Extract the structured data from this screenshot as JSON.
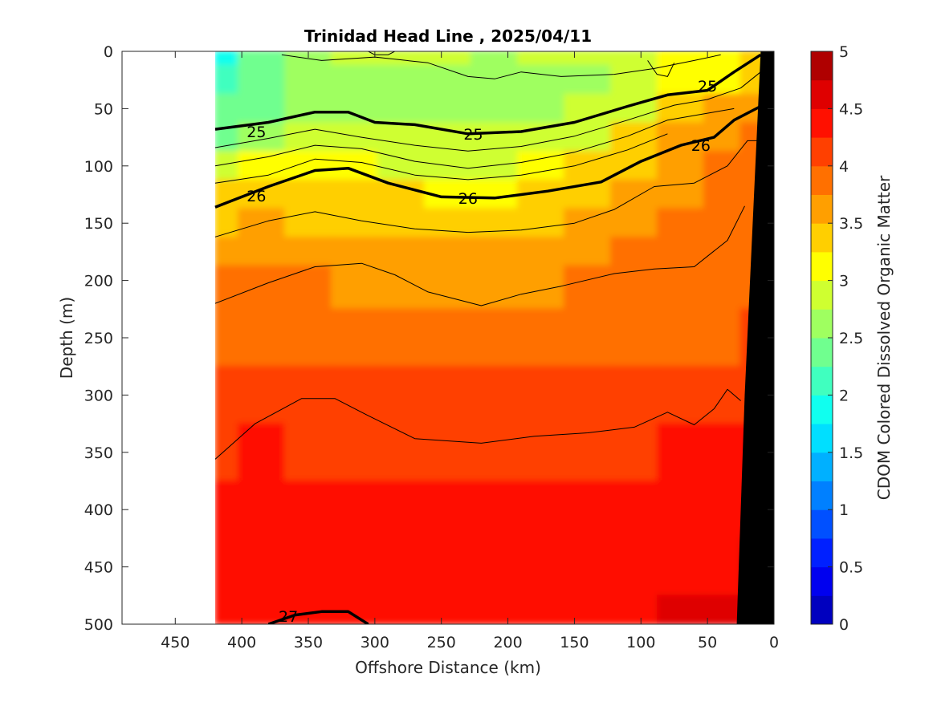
{
  "chart_data": {
    "type": "heatmap",
    "title": "Trinidad Head Line , 2025/04/11",
    "xlabel": "Offshore Distance (km)",
    "ylabel": "Depth (m)",
    "colorbar_label": "CDOM Colored Dissolved Organic Matter",
    "xlim": [
      490,
      0
    ],
    "ylim": [
      500,
      0
    ],
    "x_reversed": true,
    "y_reversed": true,
    "x_ticks": [
      450,
      400,
      350,
      300,
      250,
      200,
      150,
      100,
      50,
      0
    ],
    "y_ticks": [
      0,
      50,
      100,
      150,
      200,
      250,
      300,
      350,
      400,
      450,
      500
    ],
    "colorbar_range": [
      0,
      5
    ],
    "colorbar_ticks": [
      0,
      0.5,
      1,
      1.5,
      2,
      2.5,
      3,
      3.5,
      4,
      4.5,
      5
    ],
    "colorbar_levels": 20,
    "colormap": [
      "#00008f",
      "#0000bf",
      "#0000ef",
      "#0020ff",
      "#0050ff",
      "#0080ff",
      "#00b0ff",
      "#00dfff",
      "#10ffef",
      "#40ffbf",
      "#70ff8f",
      "#9fff60",
      "#cfff30",
      "#ffff00",
      "#ffcf00",
      "#ff9f00",
      "#ff7000",
      "#ff4000",
      "#ff1000",
      "#df0000",
      "#af0000"
    ],
    "data_x_range": [
      420,
      0
    ],
    "grid": false,
    "legend": "none",
    "bathymetry_color": "#000000",
    "bathymetry": [
      [
        10,
        0
      ],
      [
        22,
        300
      ],
      [
        28,
        500
      ]
    ],
    "x_columns": [
      420,
      385,
      350,
      315,
      280,
      245,
      210,
      175,
      140,
      105,
      70,
      35,
      15
    ],
    "depth_rows": [
      0,
      25,
      50,
      75,
      100,
      125,
      150,
      175,
      200,
      250,
      300,
      350,
      400,
      450,
      500
    ],
    "cdom_field": [
      [
        2.1,
        2.6,
        2.8,
        2.9,
        2.9,
        2.9,
        2.8,
        2.9,
        3.0,
        3.1,
        3.2,
        3.3,
        3.4
      ],
      [
        2.3,
        2.6,
        2.8,
        2.8,
        2.8,
        2.8,
        2.8,
        2.8,
        2.8,
        3.0,
        3.2,
        3.3,
        3.6
      ],
      [
        2.4,
        2.6,
        2.7,
        2.7,
        2.7,
        2.8,
        2.8,
        2.8,
        2.9,
        3.1,
        3.4,
        3.7,
        3.8
      ],
      [
        2.6,
        2.8,
        2.9,
        2.9,
        2.9,
        2.9,
        2.9,
        3.0,
        3.1,
        3.4,
        3.7,
        3.8,
        3.9
      ],
      [
        3.1,
        3.2,
        3.3,
        3.2,
        3.1,
        3.1,
        3.1,
        3.2,
        3.4,
        3.6,
        3.8,
        3.9,
        3.9
      ],
      [
        3.4,
        3.5,
        3.5,
        3.5,
        3.4,
        3.3,
        3.3,
        3.4,
        3.6,
        3.7,
        3.8,
        3.9,
        4.0
      ],
      [
        3.6,
        3.7,
        3.6,
        3.6,
        3.6,
        3.6,
        3.6,
        3.6,
        3.7,
        3.8,
        3.9,
        4.0,
        4.0
      ],
      [
        3.8,
        3.8,
        3.8,
        3.7,
        3.7,
        3.7,
        3.7,
        3.7,
        3.8,
        3.9,
        4.0,
        4.0,
        4.1
      ],
      [
        4.0,
        4.0,
        3.9,
        3.8,
        3.8,
        3.8,
        3.8,
        3.8,
        3.9,
        3.9,
        4.0,
        4.1,
        4.1
      ],
      [
        4.1,
        4.1,
        4.1,
        4.1,
        4.1,
        4.1,
        4.1,
        4.1,
        4.1,
        4.0,
        4.1,
        4.1,
        4.2
      ],
      [
        4.2,
        4.2,
        4.2,
        4.2,
        4.2,
        4.2,
        4.2,
        4.2,
        4.2,
        4.2,
        4.2,
        4.3,
        4.3
      ],
      [
        4.3,
        4.4,
        4.3,
        4.3,
        4.3,
        4.3,
        4.3,
        4.3,
        4.3,
        4.3,
        4.4,
        4.4,
        4.5
      ],
      [
        4.4,
        4.5,
        4.4,
        4.4,
        4.4,
        4.4,
        4.4,
        4.4,
        4.4,
        4.4,
        4.5,
        4.5,
        4.6
      ],
      [
        4.5,
        4.6,
        4.5,
        4.5,
        4.5,
        4.5,
        4.5,
        4.5,
        4.5,
        4.5,
        4.6,
        4.6,
        4.7
      ],
      [
        4.6,
        4.6,
        4.6,
        4.5,
        4.5,
        4.6,
        4.6,
        4.6,
        4.6,
        4.6,
        4.7,
        4.7,
        4.7
      ]
    ],
    "density_contours": [
      {
        "label": "25",
        "bold": true,
        "points": [
          [
            420,
            68
          ],
          [
            380,
            62
          ],
          [
            345,
            53
          ],
          [
            320,
            53
          ],
          [
            300,
            62
          ],
          [
            270,
            64
          ],
          [
            230,
            72
          ],
          [
            190,
            70
          ],
          [
            150,
            62
          ],
          [
            110,
            48
          ],
          [
            80,
            38
          ],
          [
            50,
            34
          ],
          [
            30,
            18
          ],
          [
            10,
            3
          ]
        ]
      },
      {
        "label": "26",
        "bold": true,
        "points": [
          [
            420,
            136
          ],
          [
            380,
            118
          ],
          [
            345,
            104
          ],
          [
            320,
            102
          ],
          [
            290,
            115
          ],
          [
            250,
            127
          ],
          [
            210,
            128
          ],
          [
            170,
            122
          ],
          [
            130,
            114
          ],
          [
            100,
            96
          ],
          [
            70,
            82
          ],
          [
            45,
            75
          ],
          [
            30,
            60
          ],
          [
            10,
            48
          ]
        ]
      },
      {
        "label": "27",
        "bold": true,
        "points": [
          [
            380,
            500
          ],
          [
            360,
            492
          ],
          [
            340,
            489
          ],
          [
            320,
            489
          ],
          [
            305,
            500
          ]
        ]
      },
      {
        "label": "",
        "bold": false,
        "points": [
          [
            420,
            84
          ],
          [
            380,
            76
          ],
          [
            345,
            68
          ],
          [
            310,
            75
          ],
          [
            270,
            82
          ],
          [
            230,
            87
          ],
          [
            190,
            83
          ],
          [
            150,
            74
          ],
          [
            110,
            60
          ],
          [
            75,
            47
          ],
          [
            50,
            42
          ],
          [
            25,
            32
          ],
          [
            10,
            18
          ]
        ]
      },
      {
        "label": "",
        "bold": false,
        "points": [
          [
            420,
            100
          ],
          [
            380,
            92
          ],
          [
            345,
            82
          ],
          [
            310,
            85
          ],
          [
            270,
            96
          ],
          [
            230,
            102
          ],
          [
            190,
            97
          ],
          [
            150,
            88
          ],
          [
            110,
            74
          ],
          [
            80,
            60
          ],
          [
            50,
            54
          ],
          [
            30,
            50
          ]
        ]
      },
      {
        "label": "",
        "bold": false,
        "points": [
          [
            420,
            115
          ],
          [
            380,
            108
          ],
          [
            345,
            94
          ],
          [
            310,
            97
          ],
          [
            270,
            108
          ],
          [
            230,
            112
          ],
          [
            190,
            108
          ],
          [
            150,
            100
          ],
          [
            110,
            86
          ],
          [
            80,
            72
          ]
        ]
      },
      {
        "label": "",
        "bold": false,
        "points": [
          [
            420,
            162
          ],
          [
            380,
            148
          ],
          [
            345,
            140
          ],
          [
            310,
            148
          ],
          [
            270,
            155
          ],
          [
            230,
            158
          ],
          [
            190,
            156
          ],
          [
            150,
            150
          ],
          [
            120,
            138
          ],
          [
            90,
            118
          ],
          [
            60,
            115
          ],
          [
            35,
            100
          ],
          [
            20,
            78
          ],
          [
            10,
            78
          ]
        ]
      },
      {
        "label": "",
        "bold": false,
        "points": [
          [
            420,
            220
          ],
          [
            380,
            202
          ],
          [
            345,
            188
          ],
          [
            310,
            185
          ],
          [
            285,
            195
          ],
          [
            260,
            210
          ],
          [
            220,
            222
          ],
          [
            190,
            212
          ],
          [
            160,
            205
          ],
          [
            120,
            194
          ],
          [
            90,
            190
          ],
          [
            60,
            188
          ],
          [
            35,
            165
          ],
          [
            22,
            135
          ]
        ]
      },
      {
        "label": "",
        "bold": false,
        "points": [
          [
            420,
            356
          ],
          [
            390,
            325
          ],
          [
            355,
            303
          ],
          [
            330,
            303
          ],
          [
            305,
            318
          ],
          [
            270,
            338
          ],
          [
            220,
            342
          ],
          [
            180,
            336
          ],
          [
            140,
            333
          ],
          [
            105,
            328
          ],
          [
            80,
            315
          ],
          [
            60,
            326
          ],
          [
            45,
            312
          ],
          [
            35,
            295
          ],
          [
            25,
            305
          ]
        ]
      },
      {
        "label": "",
        "bold": false,
        "points": [
          [
            370,
            3
          ],
          [
            340,
            8
          ],
          [
            300,
            5
          ],
          [
            260,
            10
          ],
          [
            230,
            22
          ],
          [
            210,
            24
          ],
          [
            190,
            18
          ],
          [
            160,
            22
          ],
          [
            120,
            20
          ],
          [
            90,
            15
          ],
          [
            60,
            8
          ],
          [
            40,
            3
          ]
        ]
      },
      {
        "label": "",
        "bold": false,
        "points": [
          [
            305,
            0
          ],
          [
            300,
            3
          ],
          [
            290,
            3
          ],
          [
            285,
            0
          ]
        ]
      },
      {
        "label": "",
        "bold": false,
        "points": [
          [
            95,
            8
          ],
          [
            88,
            20
          ],
          [
            80,
            22
          ],
          [
            75,
            10
          ]
        ]
      }
    ],
    "contour_label_positions": [
      {
        "label": "25",
        "x": 389,
        "y": 70
      },
      {
        "label": "25",
        "x": 226,
        "y": 72
      },
      {
        "label": "25",
        "x": 50,
        "y": 30
      },
      {
        "label": "26",
        "x": 389,
        "y": 126
      },
      {
        "label": "26",
        "x": 230,
        "y": 128
      },
      {
        "label": "26",
        "x": 55,
        "y": 82
      },
      {
        "label": "27",
        "x": 365,
        "y": 493
      }
    ]
  }
}
